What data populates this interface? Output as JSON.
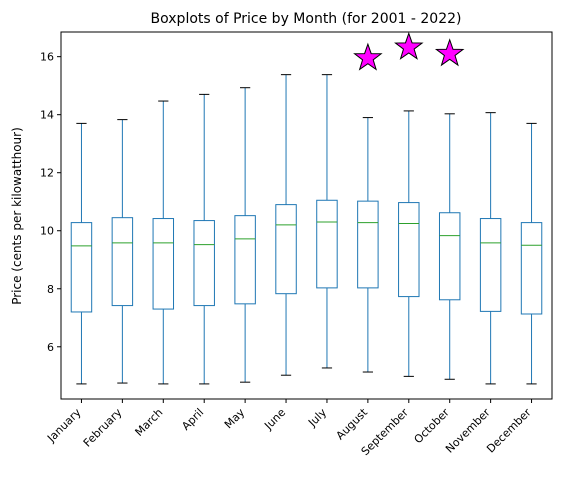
{
  "chart_data": {
    "type": "box",
    "title": "Boxplots of Price by Month (for 2001 - 2022)",
    "xlabel": "",
    "ylabel": "Price (cents per kilowatthour)",
    "ylim": [
      4.2,
      16.85
    ],
    "yticks": [
      6,
      8,
      10,
      12,
      14,
      16
    ],
    "grid": false,
    "categories": [
      "January",
      "February",
      "March",
      "April",
      "May",
      "June",
      "July",
      "August",
      "September",
      "October",
      "November",
      "December"
    ],
    "boxes": [
      {
        "whisker_low": 4.72,
        "q1": 7.2,
        "median": 9.48,
        "q3": 10.28,
        "whisker_high": 13.7
      },
      {
        "whisker_low": 4.75,
        "q1": 7.42,
        "median": 9.58,
        "q3": 10.45,
        "whisker_high": 13.83
      },
      {
        "whisker_low": 4.72,
        "q1": 7.3,
        "median": 9.58,
        "q3": 10.42,
        "whisker_high": 14.47
      },
      {
        "whisker_low": 4.72,
        "q1": 7.42,
        "median": 9.52,
        "q3": 10.35,
        "whisker_high": 14.7
      },
      {
        "whisker_low": 4.78,
        "q1": 7.48,
        "median": 9.72,
        "q3": 10.52,
        "whisker_high": 14.93
      },
      {
        "whisker_low": 5.02,
        "q1": 7.83,
        "median": 10.2,
        "q3": 10.9,
        "whisker_high": 15.38
      },
      {
        "whisker_low": 5.27,
        "q1": 8.03,
        "median": 10.3,
        "q3": 11.05,
        "whisker_high": 15.38
      },
      {
        "whisker_low": 5.13,
        "q1": 8.03,
        "median": 10.28,
        "q3": 11.02,
        "whisker_high": 13.9
      },
      {
        "whisker_low": 4.98,
        "q1": 7.73,
        "median": 10.25,
        "q3": 10.97,
        "whisker_high": 14.13
      },
      {
        "whisker_low": 4.88,
        "q1": 7.62,
        "median": 9.83,
        "q3": 10.62,
        "whisker_high": 14.03
      },
      {
        "whisker_low": 4.72,
        "q1": 7.22,
        "median": 9.58,
        "q3": 10.42,
        "whisker_high": 14.07
      },
      {
        "whisker_low": 4.72,
        "q1": 7.13,
        "median": 9.5,
        "q3": 10.28,
        "whisker_high": 13.7
      }
    ],
    "stars": [
      {
        "category": "August",
        "value": 15.95
      },
      {
        "category": "September",
        "value": 16.32
      },
      {
        "category": "October",
        "value": 16.1
      }
    ],
    "colors": {
      "box": "#1f77b4",
      "median": "#2ca02c",
      "whisker_cap": "#000000",
      "star_fill": "#ff00ff",
      "star_edge": "#000000"
    }
  }
}
